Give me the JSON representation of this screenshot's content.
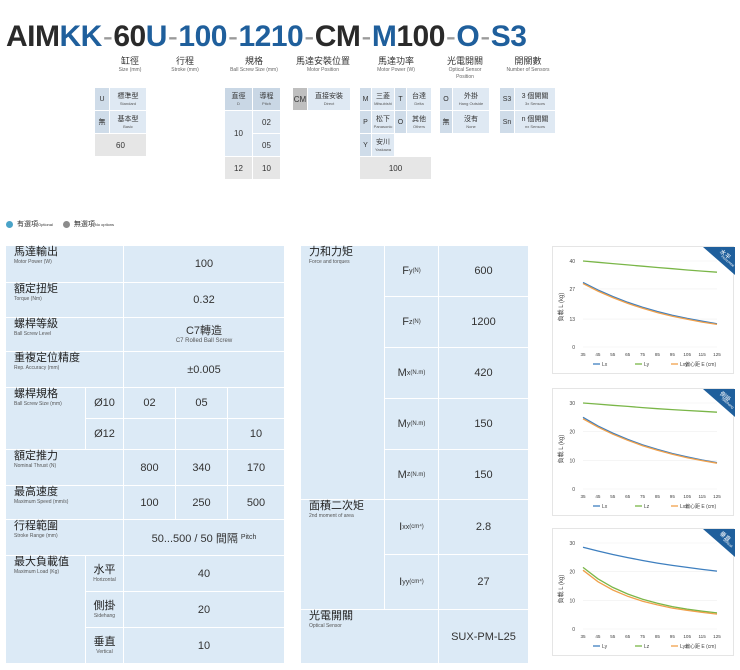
{
  "model_code": {
    "parts": [
      {
        "text": "AIM",
        "color": "dark"
      },
      {
        "text": "KK",
        "color": "blue"
      },
      {
        "text": "-",
        "color": "sep"
      },
      {
        "text": "60",
        "color": "dark"
      },
      {
        "text": "U",
        "color": "blue"
      },
      {
        "text": "-",
        "color": "sep"
      },
      {
        "text": "100",
        "color": "blue"
      },
      {
        "text": "-",
        "color": "sep"
      },
      {
        "text": "1210",
        "color": "blue"
      },
      {
        "text": "-",
        "color": "sep"
      },
      {
        "text": "CM",
        "color": "dark"
      },
      {
        "text": "-",
        "color": "sep"
      },
      {
        "text": "M",
        "color": "blue"
      },
      {
        "text": "100",
        "color": "dark"
      },
      {
        "text": "-",
        "color": "sep"
      },
      {
        "text": "O",
        "color": "blue"
      },
      {
        "text": "-",
        "color": "sep"
      },
      {
        "text": "S3",
        "color": "blue"
      }
    ]
  },
  "headers": {
    "cylinder": {
      "zh": "缸徑",
      "en": "Size (mm)"
    },
    "stroke": {
      "zh": "行程",
      "en": "Stroke (mm)"
    },
    "spec": {
      "zh": "規格",
      "en": "Ball Screw Size (mm)"
    },
    "motor_pos": {
      "zh": "馬達安裝位置",
      "en": "Motor Position"
    },
    "motor_power": {
      "zh": "馬達功率",
      "en": "Motor Power (W)"
    },
    "sensor": {
      "zh": "光電開關",
      "en1": "Optical Sensor",
      "en2": "Position"
    },
    "sensor_count": {
      "zh": "開關數",
      "en": "Number of Sensors"
    }
  },
  "options": {
    "cylinder": [
      {
        "code": "U",
        "zh": "標準型",
        "en": "Standard"
      },
      {
        "code": "無",
        "zh": "基本型",
        "en": "Basic"
      },
      {
        "value": "60"
      }
    ],
    "spec": {
      "h1": {
        "zh": "直徑",
        "en": "D"
      },
      "h2": {
        "zh": "導程",
        "en": "Pitch"
      },
      "r1": [
        "10",
        "02",
        "05"
      ],
      "r2": [
        "12",
        "10"
      ]
    },
    "motor_pos": {
      "code": "CM",
      "zh": "直接安裝",
      "en": "Direct"
    },
    "motor_power": {
      "items": [
        {
          "code": "M",
          "zh": "三菱",
          "en": "Mitsubishi"
        },
        {
          "code": "T",
          "zh": "台達",
          "en": "Delta"
        },
        {
          "code": "P",
          "zh": "松下",
          "en": "Panasonic"
        },
        {
          "code": "O",
          "zh": "其他",
          "en": "Others"
        },
        {
          "code": "Y",
          "zh": "安川",
          "en": "Yaskawa"
        }
      ],
      "value": "100"
    },
    "sensor": [
      {
        "code": "O",
        "zh": "外掛",
        "en": "Hang Outside"
      },
      {
        "code": "無",
        "zh": "沒有",
        "en": "None"
      }
    ],
    "sensor_count": [
      {
        "code": "S3",
        "zh": "3 個開關",
        "en": "3x Sensors"
      },
      {
        "code": "Sn",
        "zh": "n 個開關",
        "en": "nx Sensors"
      }
    ]
  },
  "legend": {
    "optional_zh": "有選項",
    "optional_en": "Optional",
    "none_zh": "無選項",
    "none_en": "No options",
    "optional_color": "#4aa3c8",
    "none_color": "#8c8c8c"
  },
  "table_left": {
    "motor_power": {
      "zh": "馬達輸出",
      "en": "Motor Power (W)",
      "value": "100"
    },
    "torque": {
      "zh": "額定扭矩",
      "en": "Torque (Nm)",
      "value": "0.32"
    },
    "screw_level": {
      "zh": "螺桿等級",
      "en": "Ball Screw Level",
      "vz": "C7轉造",
      "ve": "C7 Rolled Ball Screw"
    },
    "accuracy": {
      "zh": "重複定位精度",
      "en": "Rep. Accuracy (mm)",
      "value": "±0.005"
    },
    "screw_size": {
      "zh": "螺桿規格",
      "en": "Ball Screw Size (mm)",
      "r1": [
        "Ø10",
        "02",
        "05",
        ""
      ],
      "r2": [
        "Ø12",
        "",
        "",
        "10"
      ]
    },
    "thrust": {
      "zh": "額定推力",
      "en": "Nominal Thrust (N)",
      "values": [
        "800",
        "340",
        "170"
      ]
    },
    "speed": {
      "zh": "最高速度",
      "en": "Maximum Speed (mm/s)",
      "values": [
        "100",
        "250",
        "500"
      ]
    },
    "stroke": {
      "zh": "行程範圍",
      "en": "Stroke Range (mm)",
      "value": "50...500 / 50 間隔",
      "value_en": "Pitch"
    },
    "max_load": {
      "zh": "最大負載值",
      "en": "Maximum Load (Kg)",
      "rows": [
        {
          "zh": "水平",
          "en": "Horizontal",
          "value": "40"
        },
        {
          "zh": "側掛",
          "en": "Sidehang",
          "value": "20"
        },
        {
          "zh": "垂直",
          "en": "Vertical",
          "value": "10"
        }
      ]
    }
  },
  "table_right": {
    "force": {
      "zh": "力和力矩",
      "en": "Force and torques"
    },
    "rows": [
      {
        "label": "F",
        "sub": "y",
        "unit": "(N)",
        "value": "600"
      },
      {
        "label": "F",
        "sub": "z",
        "unit": "(N)",
        "value": "1200"
      },
      {
        "label": "M",
        "sub": "x",
        "unit": "(N.m)",
        "value": "420"
      },
      {
        "label": "M",
        "sub": "y",
        "unit": "(N.m)",
        "value": "150"
      },
      {
        "label": "M",
        "sub": "z",
        "unit": "(N.m)",
        "value": "150"
      }
    ],
    "moment": {
      "zh": "面積二次矩",
      "en": "2nd moment of area"
    },
    "moment_rows": [
      {
        "label": "I",
        "sub": "xx",
        "unit": "(cm⁴)",
        "value": "2.8"
      },
      {
        "label": "I",
        "sub": "yy",
        "unit": "(cm⁴)",
        "value": "27"
      }
    ],
    "sensor": {
      "zh": "光電開關",
      "en": "Optical Sensor",
      "value": "SUX-PM-L25"
    }
  },
  "chart_data": [
    {
      "type": "line",
      "corner_zh": "水平",
      "corner_en": "Horizontal",
      "ylabel": "負載 L (kg)",
      "yticks": [
        0,
        13,
        27,
        40
      ],
      "ylim": [
        0,
        40
      ],
      "x": [
        35,
        45,
        55,
        65,
        75,
        85,
        95,
        105,
        115,
        125
      ],
      "series": [
        {
          "name": "Lx",
          "color": "#3e7fbf",
          "values": [
            30,
            26.5,
            23.5,
            20.8,
            18.5,
            16.5,
            14.8,
            13.3,
            12,
            10.8
          ]
        },
        {
          "name": "Ly",
          "color": "#7ab648",
          "values": [
            40,
            39.4,
            38.8,
            38.2,
            37.6,
            37,
            36.4,
            35.8,
            35.3,
            34.8
          ]
        },
        {
          "name": "Lxy",
          "color": "#f0a04b",
          "values": [
            29.5,
            26,
            23,
            20.3,
            18,
            16,
            14.3,
            12.9,
            11.6,
            10.5
          ]
        }
      ],
      "xlabel": "偏心距 E (cm)"
    },
    {
      "type": "line",
      "corner_zh": "側掛",
      "corner_en": "Sidehang",
      "ylabel": "負載 L (kg)",
      "yticks": [
        0,
        10,
        20,
        30
      ],
      "ylim": [
        0,
        30
      ],
      "x": [
        35,
        45,
        55,
        65,
        75,
        85,
        95,
        105,
        115,
        125
      ],
      "series": [
        {
          "name": "Lx",
          "color": "#3e7fbf",
          "values": [
            25,
            22,
            19.5,
            17.3,
            15.4,
            13.8,
            12.4,
            11.2,
            10.1,
            9.2
          ]
        },
        {
          "name": "Lz",
          "color": "#7ab648",
          "values": [
            30,
            29.6,
            29.2,
            28.8,
            28.4,
            28,
            27.7,
            27.4,
            27.1,
            26.8
          ]
        },
        {
          "name": "Lxz",
          "color": "#f0a04b",
          "values": [
            24.5,
            21.6,
            19.1,
            17,
            15.1,
            13.5,
            12.1,
            10.9,
            9.9,
            9
          ]
        }
      ],
      "xlabel": "偏心距 E (cm)"
    },
    {
      "type": "line",
      "corner_zh": "垂直",
      "corner_en": "Vertical",
      "ylabel": "負載 L (kg)",
      "yticks": [
        0,
        10,
        20,
        30
      ],
      "ylim": [
        0,
        30
      ],
      "x": [
        35,
        45,
        55,
        65,
        75,
        85,
        95,
        105,
        115,
        125
      ],
      "series": [
        {
          "name": "Ly",
          "color": "#3e7fbf",
          "values": [
            28.5,
            27.2,
            26,
            24.9,
            23.9,
            23,
            22.2,
            21.5,
            20.8,
            20.2
          ]
        },
        {
          "name": "Lz",
          "color": "#7ab648",
          "values": [
            21.5,
            17.5,
            14.5,
            12.2,
            10.4,
            9,
            7.8,
            6.9,
            6.2,
            5.6
          ]
        },
        {
          "name": "Lyz",
          "color": "#f0a04b",
          "values": [
            20.5,
            16.5,
            13.6,
            11.4,
            9.7,
            8.4,
            7.3,
            6.5,
            5.8,
            5.2
          ]
        }
      ],
      "xlabel": "偏心距 E (cm)"
    }
  ]
}
